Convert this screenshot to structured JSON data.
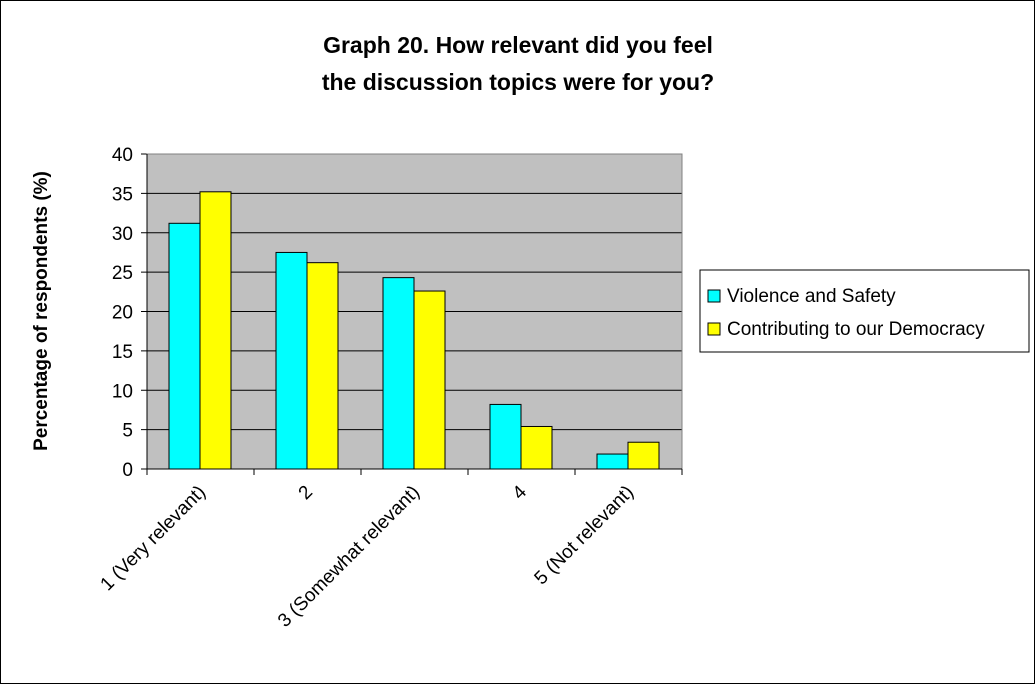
{
  "chart_data": {
    "type": "bar",
    "title_lines": [
      "Graph 20. How relevant did you feel",
      "the discussion topics were for you?"
    ],
    "xlabel": "",
    "ylabel": "Percentage of respondents (%)",
    "categories": [
      "1 (Very relevant)",
      "2",
      "3 (Somewhat relevant)",
      "4",
      "5 (Not relevant)"
    ],
    "series": [
      {
        "name": "Violence and Safety",
        "color": "#00ffff",
        "values": [
          31.2,
          27.5,
          24.3,
          8.2,
          1.9
        ]
      },
      {
        "name": "Contributing to our Democracy",
        "color": "#ffff00",
        "values": [
          35.2,
          26.2,
          22.6,
          5.4,
          3.4
        ]
      }
    ],
    "ylim": [
      0,
      40
    ],
    "yticks": [
      0,
      5,
      10,
      15,
      20,
      25,
      30,
      35,
      40
    ],
    "grid": true,
    "plot_background": "#c0c0c0",
    "legend": "right"
  }
}
